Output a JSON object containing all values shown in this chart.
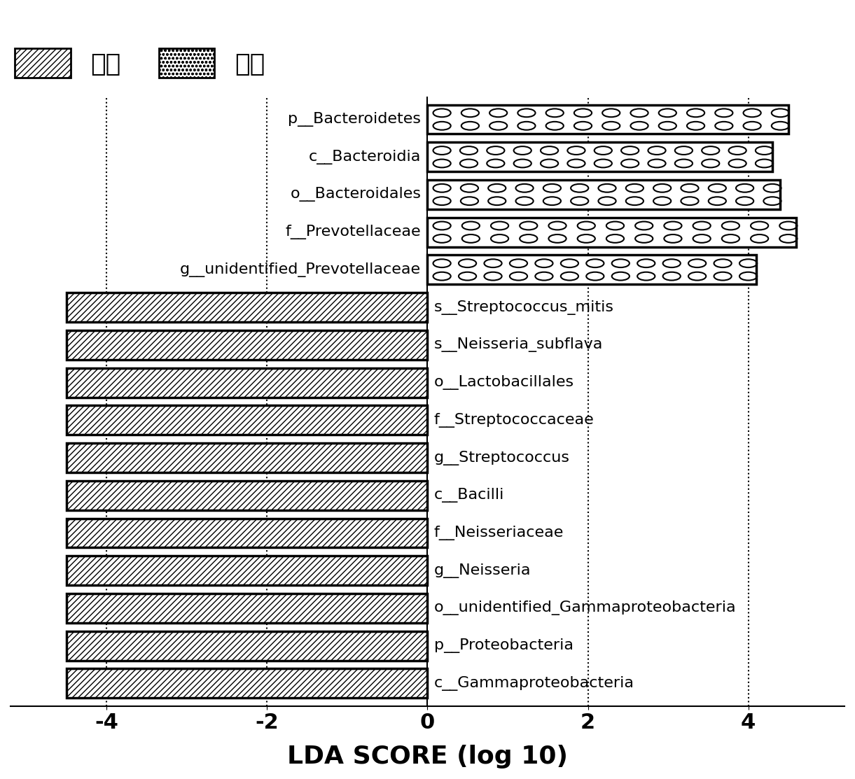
{
  "positive_bars": [
    {
      "label": "p__Bacteroidetes",
      "value": 4.5
    },
    {
      "label": "c__Bacteroidia",
      "value": 4.3
    },
    {
      "label": "o__Bacteroidales",
      "value": 4.4
    },
    {
      "label": "f__Prevotellaceae",
      "value": 4.6
    },
    {
      "label": "g__unidentified_Prevotellaceae",
      "value": 4.1
    }
  ],
  "negative_bars": [
    {
      "label": "s__Streptococcus_mitis",
      "value": -4.5
    },
    {
      "label": "s__Neisseria_subflava",
      "value": -4.5
    },
    {
      "label": "o__Lactobacillales",
      "value": -4.5
    },
    {
      "label": "f__Streptococcaceae",
      "value": -4.5
    },
    {
      "label": "g__Streptococcus",
      "value": -4.5
    },
    {
      "label": "c__Bacilli",
      "value": -4.5
    },
    {
      "label": "f__Neisseriaceae",
      "value": -4.5
    },
    {
      "label": "g__Neisseria",
      "value": -4.5
    },
    {
      "label": "o__unidentified_Gammaproteobacteria",
      "value": -4.5
    },
    {
      "label": "p__Proteobacteria",
      "value": -4.5
    },
    {
      "label": "c__Gammaproteobacteria",
      "value": -4.5
    }
  ],
  "xlim": [
    -5.2,
    5.2
  ],
  "xticks": [
    -4,
    -2,
    0,
    2,
    4
  ],
  "xlabel": "LDA SCORE (log 10)",
  "legend_control": "对照",
  "legend_test": "待检",
  "bar_height": 0.78,
  "label_fontsize": 16,
  "tick_fontsize": 22,
  "xlabel_fontsize": 26,
  "legend_fontsize": 26
}
